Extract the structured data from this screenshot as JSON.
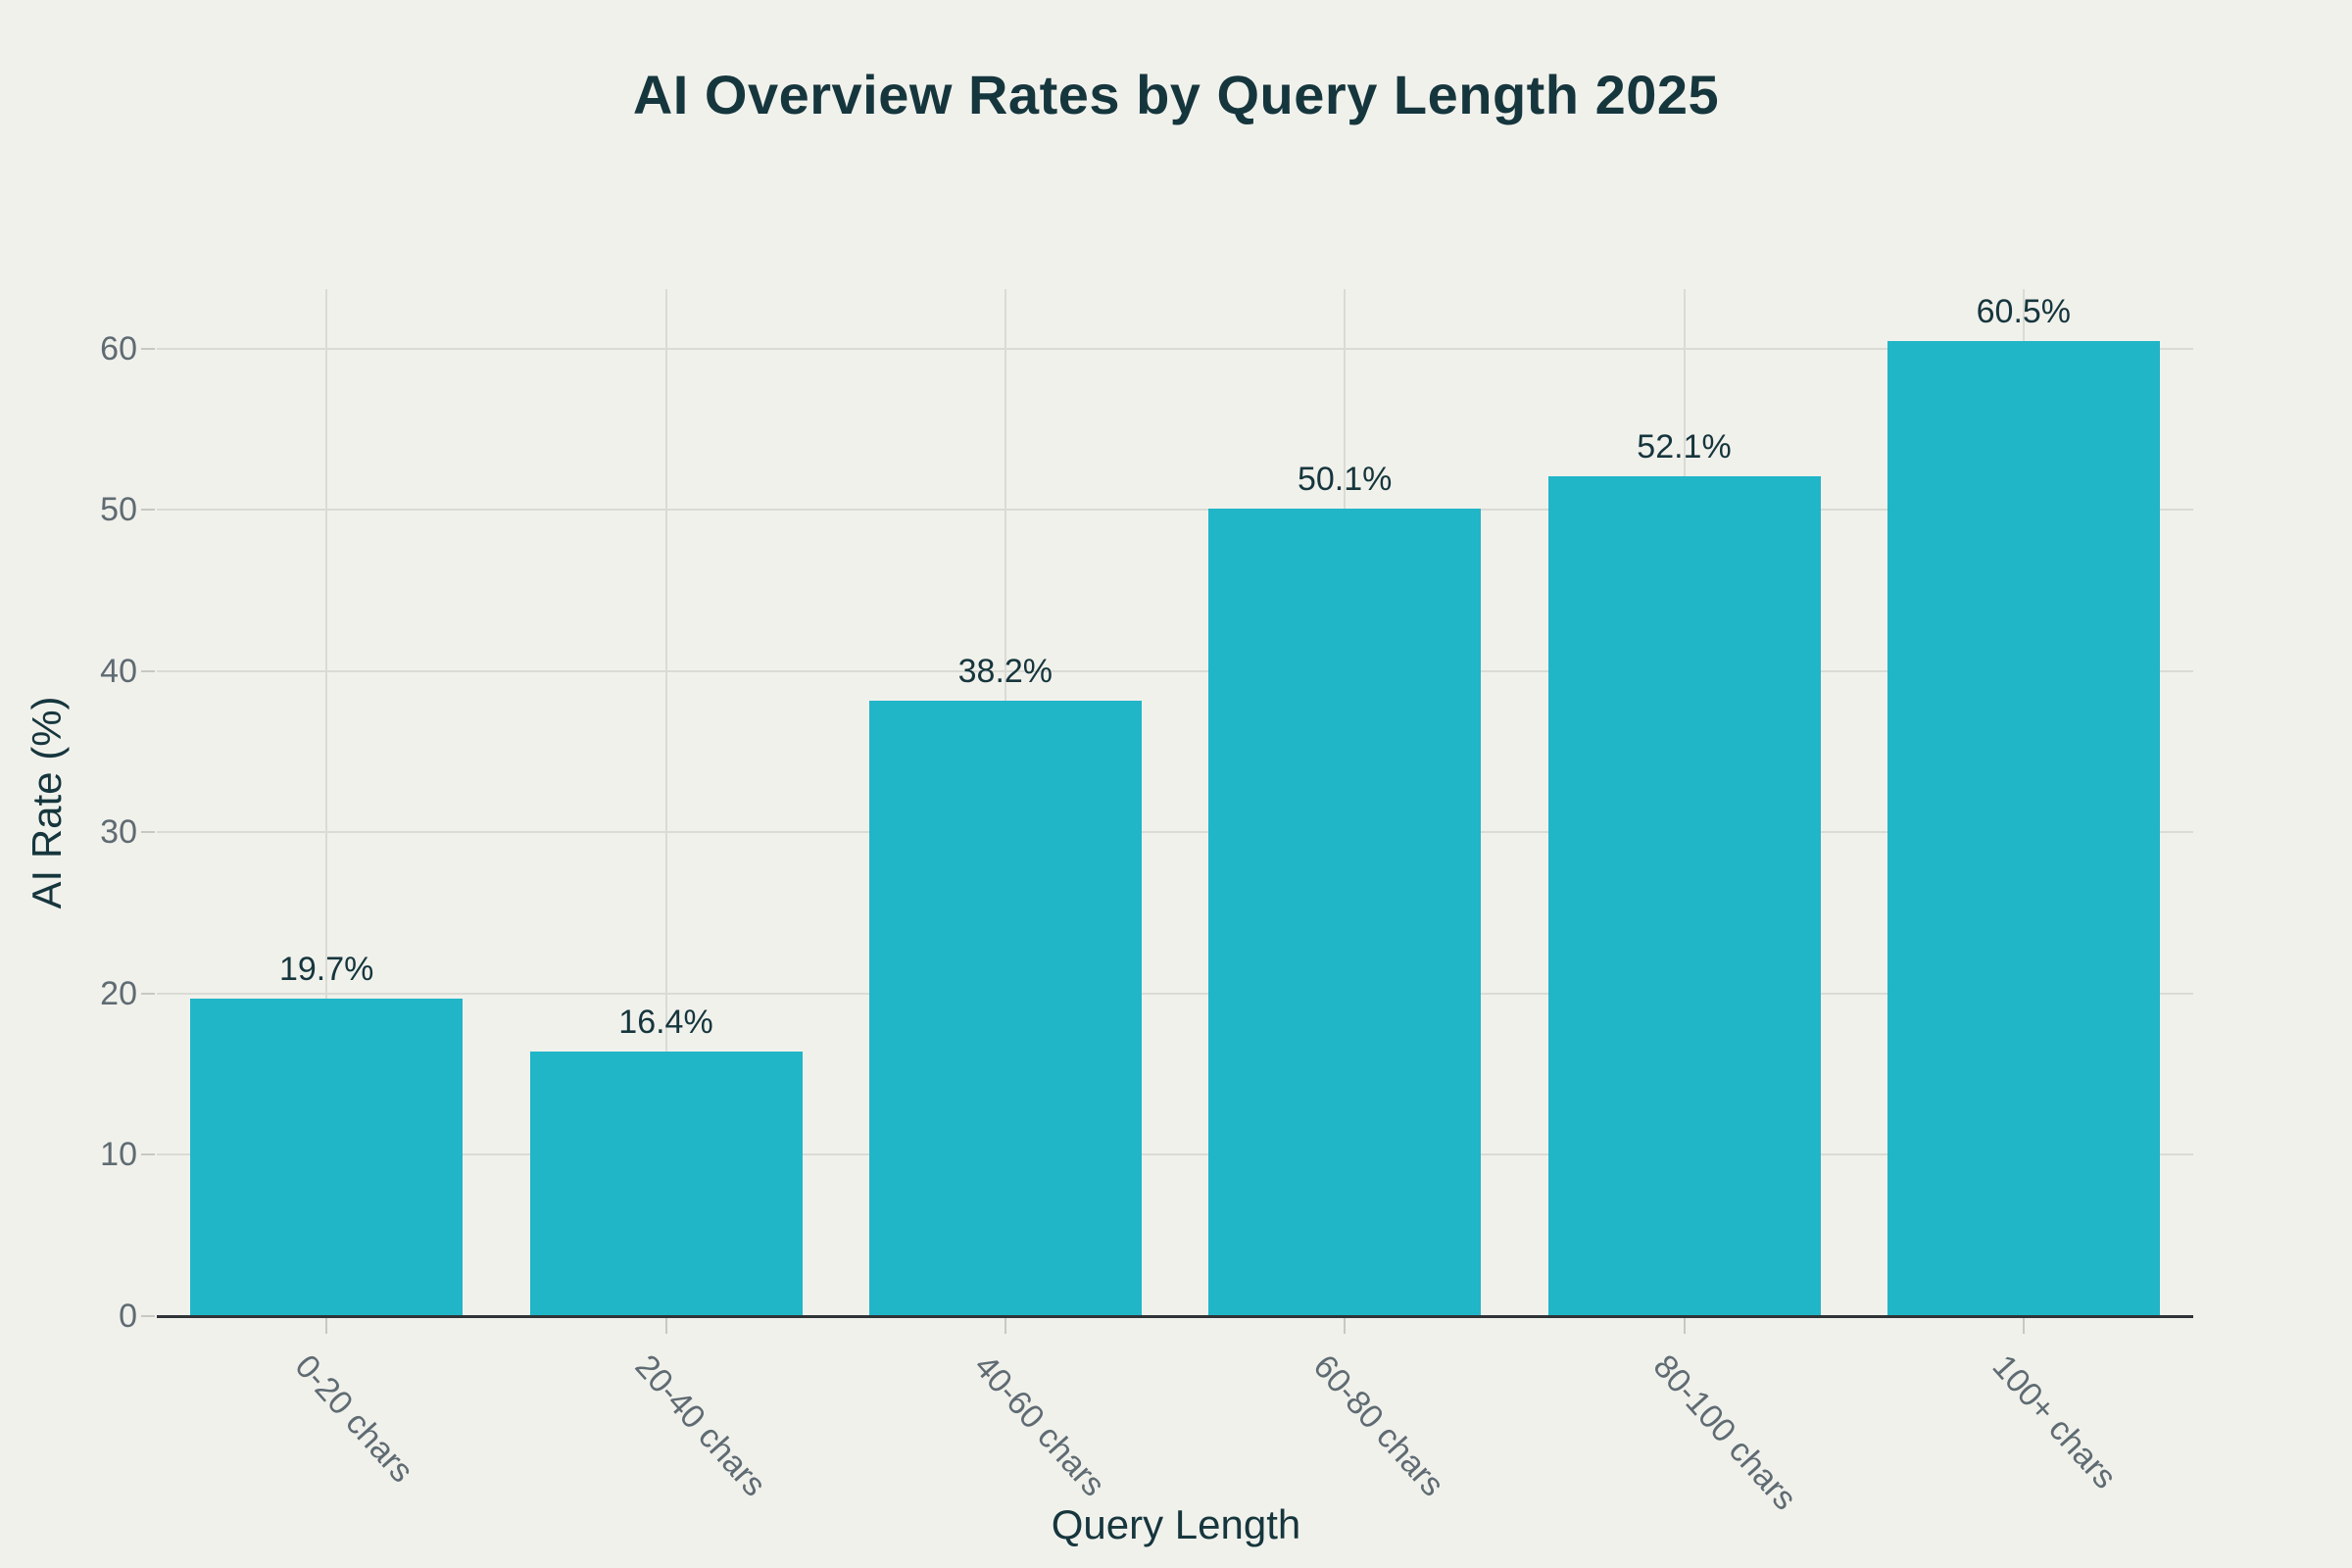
{
  "chart_data": {
    "type": "bar",
    "title": "AI Overview Rates by Query Length 2025",
    "xlabel": "Query Length",
    "ylabel": "AI Rate (%)",
    "categories": [
      "0-20 chars",
      "20-40 chars",
      "40-60 chars",
      "60-80 chars",
      "80-100 chars",
      "100+ chars"
    ],
    "values": [
      19.7,
      16.4,
      38.2,
      50.1,
      52.1,
      60.5
    ],
    "value_labels": [
      "19.7%",
      "16.4%",
      "38.2%",
      "50.1%",
      "52.1%",
      "60.5%"
    ],
    "yticks": [
      0,
      10,
      20,
      30,
      40,
      50,
      60
    ],
    "ytick_labels": [
      "0",
      "10",
      "20",
      "30",
      "40",
      "50",
      "60"
    ],
    "ylim": [
      0,
      63.7
    ],
    "grid": true,
    "legend_position": "none",
    "colors": {
      "bar": "#21B5C8",
      "background": "#F1F1EC",
      "title_text": "#16363D",
      "axis_title_text": "#16363D",
      "value_label_text": "#16363D",
      "tick_text": "#5F6B72",
      "gridline": "#DBDBD5",
      "tick_mark": "#C8C8C2",
      "axis_line": "#2F3437"
    }
  }
}
